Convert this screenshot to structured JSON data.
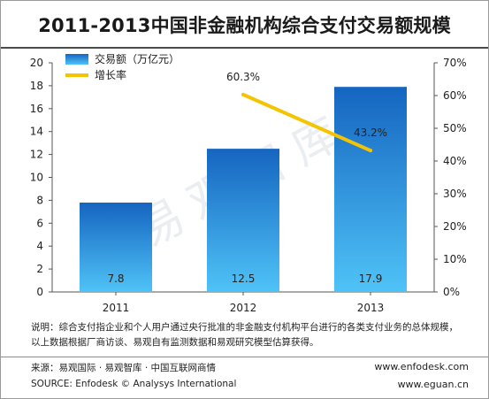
{
  "title": "2011-2013中国非金融机构综合支付交易额规模",
  "watermark": "易观智库",
  "note_line1": "说明：综合支付指企业和个人用户通过央行批准的非金融支付机构平台进行的各类支付业务的总体规模，",
  "note_line2": "以上数据根据厂商访谈、易观自有监测数据和易观研究模型估算获得。",
  "source_cn": "来源：易观国际 · 易观智库 · 中国互联网商情",
  "source_en": "SOURCE: Enfodesk © Analysys International",
  "url1": "www.enfodesk.com",
  "url2": "www.eguan.cn",
  "colors": {
    "bar_top": "#1565c0",
    "bar_bottom": "#4fc3f7",
    "line": "#f5c400"
  },
  "chart_data": {
    "type": "bar",
    "categories": [
      "2011",
      "2012",
      "2013"
    ],
    "series": [
      {
        "name": "交易额（万亿元）",
        "type": "bar",
        "axis": "left",
        "values": [
          7.8,
          12.5,
          17.9
        ],
        "labels": [
          "7.8",
          "12.5",
          "17.9"
        ]
      },
      {
        "name": "增长率",
        "type": "line",
        "axis": "right",
        "x": [
          "2012",
          "2013"
        ],
        "values": [
          60.3,
          43.2
        ],
        "labels": [
          "60.3%",
          "43.2%"
        ]
      }
    ],
    "y_left": {
      "ylim": [
        0,
        20
      ],
      "ticks": [
        "0",
        "2",
        "4",
        "6",
        "8",
        "10",
        "12",
        "14",
        "16",
        "18",
        "20"
      ]
    },
    "y_right": {
      "ylim": [
        0,
        70
      ],
      "ticks": [
        "0%",
        "10%",
        "20%",
        "30%",
        "40%",
        "50%",
        "60%",
        "70%"
      ]
    },
    "legend_placement": "top-left",
    "grid": false
  }
}
